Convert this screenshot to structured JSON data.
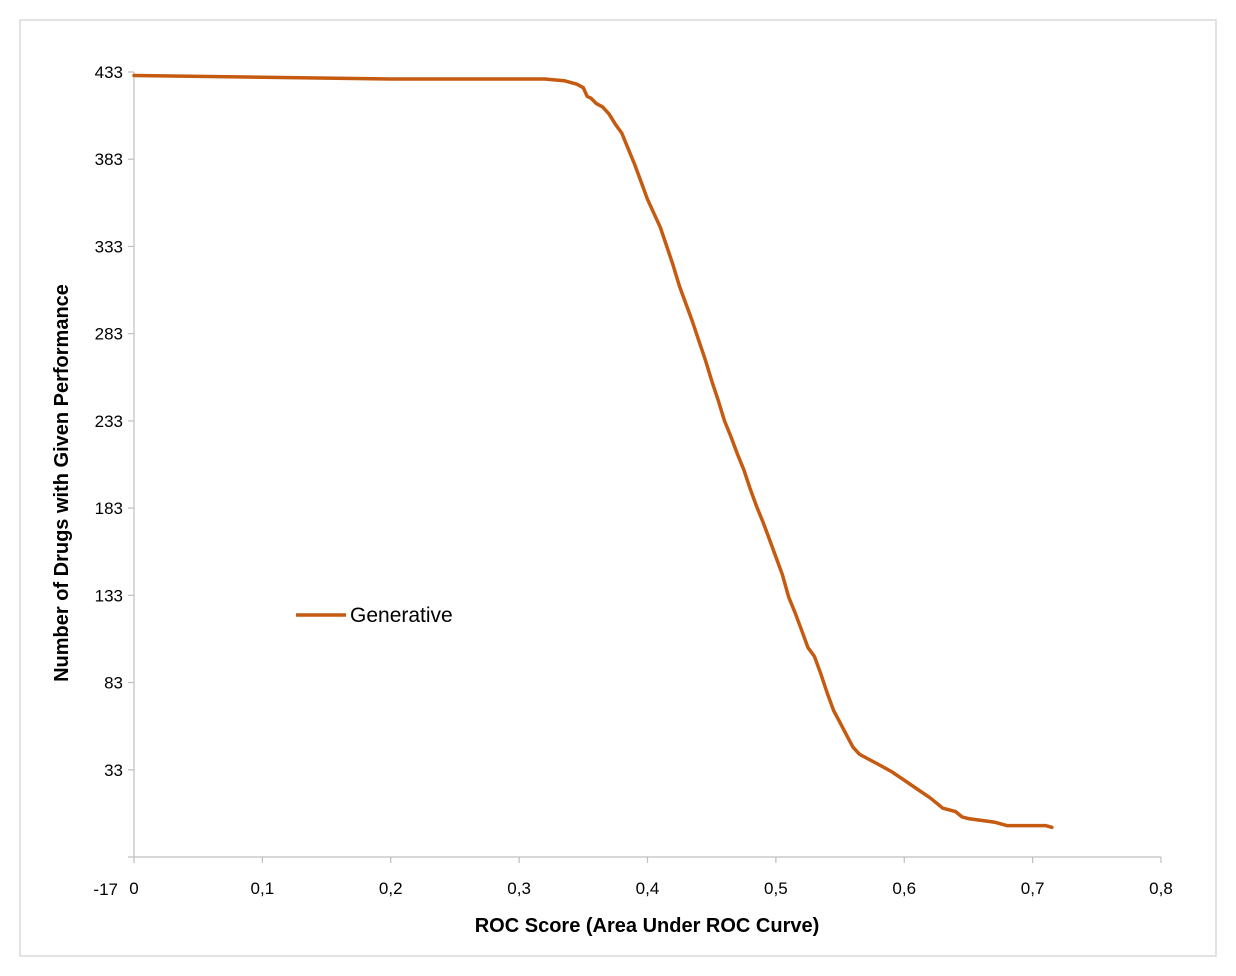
{
  "chart_data": {
    "type": "line",
    "title": "",
    "xlabel": "ROC Score (Area Under ROC Curve)",
    "ylabel": "Number of Drugs with Given Performance",
    "xlim": [
      0,
      0.8
    ],
    "ylim": [
      -17,
      433
    ],
    "x_ticks": [
      "0",
      "0,1",
      "0,2",
      "0,3",
      "0,4",
      "0,5",
      "0,6",
      "0,7",
      "0,8"
    ],
    "y_ticks": [
      "-17",
      "33",
      "83",
      "133",
      "183",
      "233",
      "283",
      "333",
      "383",
      "433"
    ],
    "grid": false,
    "legend_position": "left-middle",
    "series": [
      {
        "name": "Generative",
        "color": "#C55A11",
        "x": [
          0,
          0.1,
          0.2,
          0.3,
          0.32,
          0.335,
          0.345,
          0.35,
          0.353,
          0.356,
          0.36,
          0.365,
          0.37,
          0.375,
          0.38,
          0.385,
          0.39,
          0.395,
          0.4,
          0.405,
          0.41,
          0.415,
          0.42,
          0.425,
          0.43,
          0.435,
          0.44,
          0.445,
          0.45,
          0.455,
          0.46,
          0.465,
          0.47,
          0.475,
          0.48,
          0.485,
          0.49,
          0.495,
          0.5,
          0.505,
          0.51,
          0.515,
          0.52,
          0.525,
          0.53,
          0.535,
          0.54,
          0.545,
          0.55,
          0.555,
          0.56,
          0.565,
          0.57,
          0.58,
          0.59,
          0.6,
          0.61,
          0.62,
          0.63,
          0.64,
          0.645,
          0.65,
          0.66,
          0.67,
          0.68,
          0.69,
          0.7,
          0.71,
          0.715
        ],
        "values": [
          431,
          430,
          429,
          429,
          429,
          428,
          426,
          424,
          419,
          418,
          415,
          413,
          409,
          403,
          398,
          389,
          380,
          370,
          360,
          352,
          344,
          333,
          322,
          310,
          300,
          290,
          279,
          268,
          256,
          245,
          233,
          224,
          214,
          205,
          194,
          184,
          175,
          165,
          155,
          145,
          132,
          123,
          113,
          103,
          98,
          88,
          77,
          67,
          60,
          53,
          46,
          42,
          40,
          36,
          32,
          27,
          22,
          17,
          11,
          9,
          6,
          5,
          4,
          3,
          1,
          1,
          1,
          1,
          0
        ]
      }
    ]
  }
}
